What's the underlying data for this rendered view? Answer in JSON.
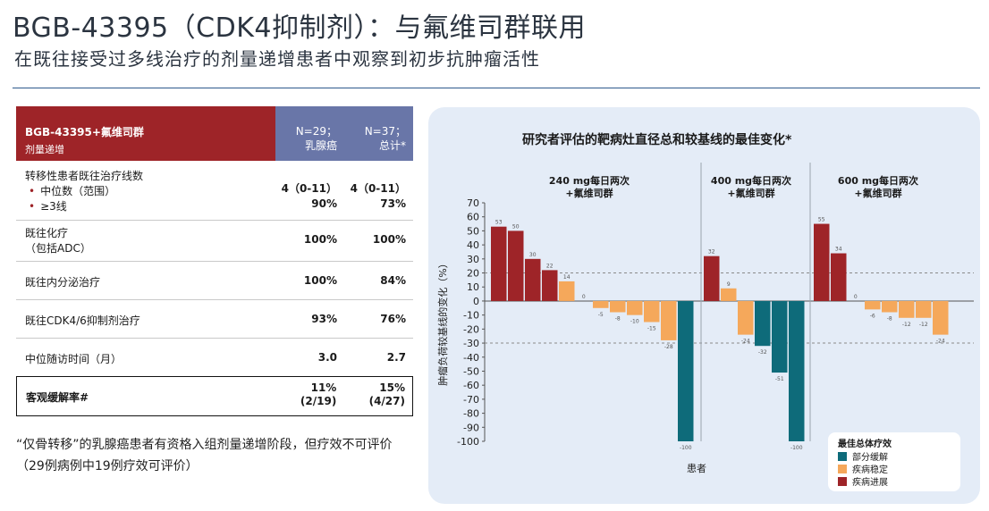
{
  "header": {
    "title": "BGB-43395（CDK4抑制剂）：与氟维司群联用",
    "subtitle": "在既往接受过多线治疗的剂量递增患者中观察到初步抗肿瘤活性"
  },
  "table": {
    "head_main_l1": "BGB-43395+氟维司群",
    "head_main_l2": "剂量递增",
    "col1_l1": "N=29；",
    "col1_l2": "乳腺癌",
    "col2_l1": "N=37；",
    "col2_l2": "总计*",
    "rows": [
      {
        "label": "转移性患者既往治疗线数",
        "sub1": "中位数（范围）",
        "sub2": "≥3线",
        "v1a": "4（0-11）",
        "v1b": "90%",
        "v2a": "4（0-11）",
        "v2b": "73%"
      },
      {
        "label": "既往化疗",
        "sub": "（包括ADC）",
        "v1": "100%",
        "v2": "100%"
      },
      {
        "label": "既往内分泌治疗",
        "v1": "100%",
        "v2": "84%"
      },
      {
        "label": "既往CDK4/6抑制剂治疗",
        "v1": "93%",
        "v2": "76%"
      },
      {
        "label": "中位随访时间（月）",
        "v1": "3.0",
        "v2": "2.7"
      },
      {
        "label": "客观缓解率#",
        "v1a": "11%",
        "v1b": "(2/19)",
        "v2a": "15%",
        "v2b": "(4/27)"
      }
    ]
  },
  "footnote": "“仅骨转移”的乳腺癌患者有资格入组剂量递增阶段，但疗效不可评价 （29例病例中19例疗效可评价）",
  "chart_title": "研究者评估的靶病灶直径总和较基线的最佳变化*",
  "colors": {
    "pr": "#0e6b7a",
    "sd": "#f5a85b",
    "pd": "#9e2428",
    "header_red": "#9e2428",
    "header_blue": "#6976a8"
  },
  "chart_data": {
    "type": "bar",
    "title": "研究者评估的靶病灶直径总和较基线的最佳变化*",
    "ylabel": "肿瘤负荷较基线的变化（%）",
    "xlabel": "患者",
    "ylim": [
      -100,
      70
    ],
    "yticks": [
      70,
      60,
      50,
      40,
      30,
      20,
      10,
      0,
      -10,
      -20,
      -30,
      -40,
      -50,
      -60,
      -70,
      -80,
      -90,
      -100
    ],
    "reference_lines": [
      20,
      -30
    ],
    "legend": {
      "title": "最佳总体疗效",
      "items": [
        {
          "key": "pr",
          "label": "部分缓解"
        },
        {
          "key": "sd",
          "label": "疾病稳定"
        },
        {
          "key": "pd",
          "label": "疾病进展"
        }
      ]
    },
    "groups": [
      {
        "label_l1": "240 mg每日两次",
        "label_l2": "+氟维司群",
        "bars": [
          {
            "value": 53,
            "resp": "pd"
          },
          {
            "value": 50,
            "resp": "pd"
          },
          {
            "value": 30,
            "resp": "pd"
          },
          {
            "value": 22,
            "resp": "pd"
          },
          {
            "value": 14,
            "resp": "sd"
          },
          {
            "value": 0,
            "resp": "sd"
          },
          {
            "value": -5,
            "resp": "sd"
          },
          {
            "value": -8,
            "resp": "sd"
          },
          {
            "value": -10,
            "resp": "sd"
          },
          {
            "value": -15,
            "resp": "sd"
          },
          {
            "value": -28,
            "resp": "sd"
          },
          {
            "value": -100,
            "resp": "pr"
          }
        ]
      },
      {
        "label_l1": "400 mg每日两次",
        "label_l2": "+氟维司群",
        "bars": [
          {
            "value": 32,
            "resp": "pd"
          },
          {
            "value": 9,
            "resp": "sd"
          },
          {
            "value": -24,
            "resp": "sd"
          },
          {
            "value": -32,
            "resp": "pr"
          },
          {
            "value": -51,
            "resp": "pr"
          },
          {
            "value": -100,
            "resp": "pr"
          }
        ]
      },
      {
        "label_l1": "600 mg每日两次",
        "label_l2": "+氟维司群",
        "bars": [
          {
            "value": 55,
            "resp": "pd"
          },
          {
            "value": 34,
            "resp": "pd"
          },
          {
            "value": 0,
            "resp": "sd"
          },
          {
            "value": -6,
            "resp": "sd"
          },
          {
            "value": -8,
            "resp": "sd"
          },
          {
            "value": -12,
            "resp": "sd"
          },
          {
            "value": -12,
            "resp": "sd"
          },
          {
            "value": -24,
            "resp": "sd"
          }
        ]
      }
    ]
  }
}
